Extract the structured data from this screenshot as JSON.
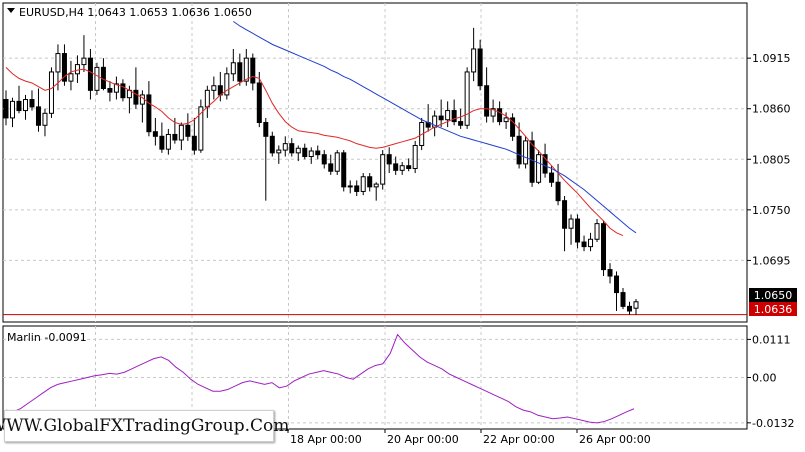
{
  "header": {
    "symbol": "EURUSD,H4",
    "open": "1.0643",
    "high": "1.0653",
    "low": "1.0636",
    "close": "1.0650"
  },
  "indicator": {
    "name": "Marlin",
    "value": "-0.0091"
  },
  "watermark": "WWW.GlobalFXTradingGroup.Com",
  "price_badges": {
    "current": "1.0650",
    "line": "1.0636"
  },
  "colors": {
    "up_candle": "#ffffff",
    "down_candle": "#000000",
    "fast_ma": "#e02828",
    "slow_ma": "#1f3fd0",
    "oscillator": "#a020c0",
    "price_line": "#cc0000"
  },
  "chart_data": [
    {
      "type": "candlestick",
      "title": "EURUSD,H4",
      "y_ticks": [
        "1.0915",
        "1.0860",
        "1.0805",
        "1.0750",
        "1.0695"
      ],
      "ylim": [
        1.0628,
        1.0975
      ],
      "x_tick_labels": [
        "18 Apr 00:00",
        "20 Apr 00:00",
        "22 Apr 00:00",
        "26 Apr 00:00"
      ],
      "ohlc": [
        [
          1.087,
          1.088,
          1.0842,
          1.085
        ],
        [
          1.085,
          1.0872,
          1.084,
          1.0868
        ],
        [
          1.0868,
          1.0885,
          1.0855,
          1.0858
        ],
        [
          1.0858,
          1.0875,
          1.0848,
          1.087
        ],
        [
          1.087,
          1.088,
          1.0858,
          1.0862
        ],
        [
          1.0862,
          1.0882,
          1.0835,
          1.0842
        ],
        [
          1.0842,
          1.086,
          1.083,
          1.0855
        ],
        [
          1.0855,
          1.0905,
          1.085,
          1.09
        ],
        [
          1.09,
          1.093,
          1.088,
          1.092
        ],
        [
          1.092,
          1.093,
          1.0885,
          1.089
        ],
        [
          1.089,
          1.0912,
          1.088,
          1.0898
        ],
        [
          1.0898,
          1.0918,
          1.0888,
          1.0908
        ],
        [
          1.0908,
          1.094,
          1.09,
          1.0915
        ],
        [
          1.0915,
          1.0925,
          1.087,
          1.088
        ],
        [
          1.088,
          1.091,
          1.0875,
          1.0905
        ],
        [
          1.0905,
          1.0915,
          1.088,
          1.0882
        ],
        [
          1.0882,
          1.089,
          1.0868,
          1.0878
        ],
        [
          1.0878,
          1.0895,
          1.087,
          1.0887
        ],
        [
          1.0887,
          1.0892,
          1.0868,
          1.0872
        ],
        [
          1.0872,
          1.0885,
          1.0855,
          1.088
        ],
        [
          1.088,
          1.0905,
          1.086,
          1.0865
        ],
        [
          1.0865,
          1.088,
          1.0845,
          1.0875
        ],
        [
          1.0875,
          1.089,
          1.083,
          1.0835
        ],
        [
          1.0835,
          1.085,
          1.082,
          1.083
        ],
        [
          1.083,
          1.0845,
          1.0812,
          1.0816
        ],
        [
          1.0816,
          1.0838,
          1.081,
          1.0832
        ],
        [
          1.0832,
          1.085,
          1.0822,
          1.0826
        ],
        [
          1.0826,
          1.0845,
          1.0815,
          1.0842
        ],
        [
          1.0842,
          1.0855,
          1.0825,
          1.083
        ],
        [
          1.083,
          1.085,
          1.081,
          1.0815
        ],
        [
          1.0815,
          1.087,
          1.0812,
          1.0862
        ],
        [
          1.0862,
          1.0885,
          1.085,
          1.088
        ],
        [
          1.088,
          1.0895,
          1.087,
          1.0885
        ],
        [
          1.0885,
          1.09,
          1.0868,
          1.0875
        ],
        [
          1.0875,
          1.0905,
          1.087,
          1.0898
        ],
        [
          1.0898,
          1.0925,
          1.089,
          1.091
        ],
        [
          1.091,
          1.092,
          1.0885,
          1.089
        ],
        [
          1.089,
          1.0925,
          1.0885,
          1.0915
        ],
        [
          1.0915,
          1.092,
          1.088,
          1.0888
        ],
        [
          1.0888,
          1.09,
          1.084,
          1.0845
        ],
        [
          1.0845,
          1.085,
          1.076,
          1.083
        ],
        [
          1.083,
          1.0835,
          1.0808,
          1.0812
        ],
        [
          1.0812,
          1.082,
          1.08,
          1.0815
        ],
        [
          1.0815,
          1.083,
          1.0808,
          1.0822
        ],
        [
          1.0822,
          1.0828,
          1.0808,
          1.0812
        ],
        [
          1.0812,
          1.082,
          1.0803,
          1.0817
        ],
        [
          1.0817,
          1.0822,
          1.0805,
          1.0808
        ],
        [
          1.0808,
          1.0818,
          1.08,
          1.0814
        ],
        [
          1.0814,
          1.082,
          1.0805,
          1.081
        ],
        [
          1.081,
          1.0815,
          1.0795,
          1.08
        ],
        [
          1.08,
          1.081,
          1.0788,
          1.0792
        ],
        [
          1.0792,
          1.0815,
          1.0788,
          1.0812
        ],
        [
          1.0812,
          1.0815,
          1.077,
          1.0775
        ],
        [
          1.0775,
          1.0782,
          1.0768,
          1.0776
        ],
        [
          1.0776,
          1.0782,
          1.0765,
          1.077
        ],
        [
          1.077,
          1.079,
          1.0766,
          1.0786
        ],
        [
          1.0786,
          1.079,
          1.077,
          1.0775
        ],
        [
          1.0775,
          1.078,
          1.076,
          1.0778
        ],
        [
          1.0778,
          1.0815,
          1.0772,
          1.081
        ],
        [
          1.081,
          1.0818,
          1.079,
          1.08
        ],
        [
          1.08,
          1.0808,
          1.0788,
          1.0793
        ],
        [
          1.0793,
          1.0802,
          1.0788,
          1.0798
        ],
        [
          1.0798,
          1.0806,
          1.0792,
          1.0795
        ],
        [
          1.0795,
          1.0825,
          1.079,
          1.082
        ],
        [
          1.082,
          1.085,
          1.0815,
          1.0845
        ],
        [
          1.0845,
          1.0865,
          1.0835,
          1.084
        ],
        [
          1.084,
          1.0858,
          1.083,
          1.0852
        ],
        [
          1.0852,
          1.087,
          1.084,
          1.0848
        ],
        [
          1.0848,
          1.0868,
          1.084,
          1.0858
        ],
        [
          1.0858,
          1.087,
          1.0842,
          1.0846
        ],
        [
          1.0846,
          1.086,
          1.0838,
          1.0842
        ],
        [
          1.0842,
          1.0905,
          1.0838,
          1.09
        ],
        [
          1.09,
          1.0948,
          1.089,
          1.0925
        ],
        [
          1.0925,
          1.0935,
          1.088,
          1.0885
        ],
        [
          1.0885,
          1.0905,
          1.0845,
          1.0852
        ],
        [
          1.0852,
          1.087,
          1.0845,
          1.086
        ],
        [
          1.086,
          1.0868,
          1.0842,
          1.0846
        ],
        [
          1.0846,
          1.0856,
          1.0838,
          1.085
        ],
        [
          1.085,
          1.0855,
          1.0825,
          1.083
        ],
        [
          1.083,
          1.0845,
          1.0795,
          1.08
        ],
        [
          1.08,
          1.083,
          1.0795,
          1.0825
        ],
        [
          1.0825,
          1.0835,
          1.0775,
          1.078
        ],
        [
          1.078,
          1.0815,
          1.0778,
          1.081
        ],
        [
          1.081,
          1.0822,
          1.0785,
          1.079
        ],
        [
          1.079,
          1.0798,
          1.0775,
          1.078
        ],
        [
          1.078,
          1.08,
          1.0755,
          1.076
        ],
        [
          1.076,
          1.0765,
          1.0705,
          1.073
        ],
        [
          1.073,
          1.0745,
          1.0712,
          1.074
        ],
        [
          1.074,
          1.0745,
          1.0708,
          1.0715
        ],
        [
          1.0715,
          1.0722,
          1.0705,
          1.071
        ],
        [
          1.071,
          1.0725,
          1.0705,
          1.0718
        ],
        [
          1.0718,
          1.074,
          1.0715,
          1.0735
        ],
        [
          1.0735,
          1.0738,
          1.0678,
          1.0685
        ],
        [
          1.0685,
          1.0692,
          1.067,
          1.0678
        ],
        [
          1.0678,
          1.0683,
          1.064,
          1.066
        ],
        [
          1.066,
          1.0665,
          1.0642,
          1.0645
        ],
        [
          1.0645,
          1.065,
          1.0636,
          1.064
        ],
        [
          1.0643,
          1.0653,
          1.0636,
          1.065
        ]
      ],
      "series": [
        {
          "values": [
            1.0905,
            1.0898,
            1.0893,
            1.089,
            1.0888,
            1.0884,
            1.088,
            1.0882,
            1.0888,
            1.0895,
            1.09,
            1.0902,
            1.0903,
            1.09,
            1.0896,
            1.0892,
            1.0889,
            1.0886,
            1.0884,
            1.088,
            1.0876,
            1.0872,
            1.0866,
            1.0862,
            1.0857,
            1.085,
            1.0845,
            1.0843,
            1.0844,
            1.0848,
            1.0855,
            1.0862,
            1.0868,
            1.0875,
            1.088,
            1.0884,
            1.0888,
            1.0892,
            1.0895,
            1.0893,
            1.088,
            1.0866,
            1.0855,
            1.0846,
            1.084,
            1.0836,
            1.0835,
            1.0834,
            1.0833,
            1.0831,
            1.083,
            1.0829,
            1.0827,
            1.0825,
            1.0822,
            1.082,
            1.0818,
            1.0817,
            1.0818,
            1.082,
            1.0822,
            1.0824,
            1.0826,
            1.0828,
            1.0832,
            1.0836,
            1.084,
            1.0843,
            1.0846,
            1.0849,
            1.0851,
            1.0854,
            1.0858,
            1.086,
            1.086,
            1.0859,
            1.0856,
            1.0852,
            1.0846,
            1.0838,
            1.083,
            1.0821,
            1.0814,
            1.0806,
            1.0798,
            1.079,
            1.0782,
            1.0775,
            1.0768,
            1.076,
            1.0752,
            1.0745,
            1.0738,
            1.073,
            1.0725,
            1.0722
          ]
        },
        {
          "values": [
            1.0955,
            1.095,
            1.0946,
            1.0942,
            1.0938,
            1.0934,
            1.093,
            1.0927,
            1.0924,
            1.0921,
            1.0918,
            1.0915,
            1.0912,
            1.0909,
            1.0906,
            1.0902,
            1.0899,
            1.0895,
            1.0892,
            1.0888,
            1.0884,
            1.088,
            1.0876,
            1.0872,
            1.0868,
            1.0864,
            1.086,
            1.0856,
            1.0852,
            1.0848,
            1.0845,
            1.0842,
            1.0839,
            1.0836,
            1.0833,
            1.083,
            1.0828,
            1.0826,
            1.0824,
            1.0822,
            1.082,
            1.0818,
            1.0816,
            1.0813,
            1.081,
            1.0807,
            1.0804,
            1.0801,
            1.0798,
            1.0795,
            1.0791,
            1.0787,
            1.0782,
            1.0777,
            1.0772,
            1.0766,
            1.076,
            1.0754,
            1.0748,
            1.0742,
            1.0736,
            1.073,
            1.0725
          ]
        }
      ]
    },
    {
      "type": "line",
      "title": "Marlin",
      "y_ticks": [
        "0.0111",
        "0.00",
        "-0.0132"
      ],
      "ylim": [
        -0.015,
        0.015
      ],
      "series": [
        {
          "values": [
            -0.0095,
            -0.01,
            -0.009,
            -0.0075,
            -0.006,
            -0.0045,
            -0.003,
            -0.002,
            -0.0015,
            -0.001,
            -0.0005,
            0.0,
            0.0005,
            0.0008,
            0.0012,
            0.001,
            0.0015,
            0.0025,
            0.0035,
            0.0045,
            0.0055,
            0.006,
            0.005,
            0.003,
            0.0015,
            -0.0005,
            -0.002,
            -0.003,
            -0.004,
            -0.004,
            -0.0035,
            -0.0025,
            -0.0015,
            -0.001,
            -0.0015,
            -0.002,
            -0.0015,
            -0.003,
            -0.0025,
            -0.001,
            0.0,
            0.001,
            0.0015,
            0.002,
            0.0015,
            0.001,
            0.0,
            -0.0005,
            0.001,
            0.0025,
            0.0035,
            0.004,
            0.007,
            0.0125,
            0.01,
            0.008,
            0.006,
            0.0045,
            0.0035,
            0.0025,
            0.001,
            0.0,
            -0.001,
            -0.002,
            -0.003,
            -0.004,
            -0.005,
            -0.006,
            -0.007,
            -0.0085,
            -0.0095,
            -0.01,
            -0.011,
            -0.0115,
            -0.012,
            -0.0118,
            -0.0115,
            -0.012,
            -0.0125,
            -0.013,
            -0.0132,
            -0.0128,
            -0.012,
            -0.011,
            -0.01,
            -0.0091
          ]
        }
      ]
    }
  ]
}
